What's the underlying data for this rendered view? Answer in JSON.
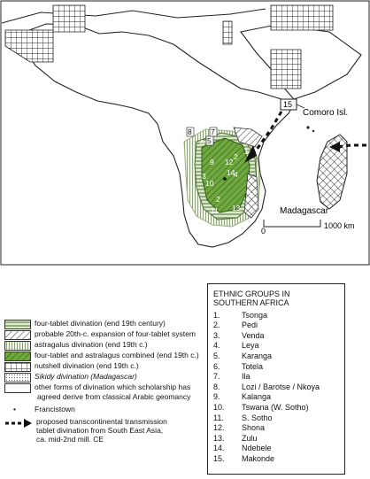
{
  "map": {
    "comoro_label": "Comoro Isl.",
    "madagascar_label": "Madagascar",
    "scale_zero": "0",
    "scale_label": "1000 km",
    "callout_15": "15",
    "region_numbers": [
      "8",
      "7",
      "5",
      "6",
      "9",
      "12",
      "2",
      "1",
      "4",
      "3",
      "10",
      "2",
      "14",
      "11",
      "13",
      "1"
    ]
  },
  "legend": {
    "items": [
      {
        "text": "four-tablet divination (end 19th century)",
        "pattern": "hatch-h"
      },
      {
        "text": "probable 20th-c. expansion of four-tablet system",
        "pattern": "hatch-d"
      },
      {
        "text": "astragalus divination (end 19th c.)",
        "pattern": "vert"
      },
      {
        "text": "four-tablet and astralagus combined (end 19th c.)",
        "pattern": "combined"
      },
      {
        "text": "nutshell divination (end 19th c.)",
        "pattern": "grid"
      },
      {
        "text": "Sikidy divination (Madagascar)",
        "pattern": "dots"
      },
      {
        "text": "other forms of divination which scholarship has",
        "pattern": "blank"
      },
      {
        "text": "agreed derive from classical Arabic geomancy",
        "pattern": "none"
      }
    ],
    "francistown": "Francistown",
    "transmission": [
      "proposed transcontinental transmission",
      "tablet divination from South East Asia,",
      "ca. mid-2nd mill. CE"
    ]
  },
  "ethnic_groups": {
    "title_line1": "ETHNIC GROUPS IN",
    "title_line2": "SOUTHERN AFRICA",
    "items": [
      {
        "n": "1.",
        "name": "Tsonga"
      },
      {
        "n": "2.",
        "name": "Pedi"
      },
      {
        "n": "3.",
        "name": "Venda"
      },
      {
        "n": "4.",
        "name": "Leya"
      },
      {
        "n": "5.",
        "name": "Karanga"
      },
      {
        "n": "6.",
        "name": "Totela"
      },
      {
        "n": "7.",
        "name": "Ila"
      },
      {
        "n": "8.",
        "name": "Lozi / Barotse / Nkoya"
      },
      {
        "n": "9.",
        "name": "Kalanga"
      },
      {
        "n": "10.",
        "name": "Tswana (W. Sotho)"
      },
      {
        "n": "11.",
        "name": "S. Sotho"
      },
      {
        "n": "12.",
        "name": "Shona"
      },
      {
        "n": "13.",
        "name": "Zulu"
      },
      {
        "n": "14.",
        "name": "Ndebele"
      },
      {
        "n": "15.",
        "name": "Makonde"
      }
    ]
  }
}
